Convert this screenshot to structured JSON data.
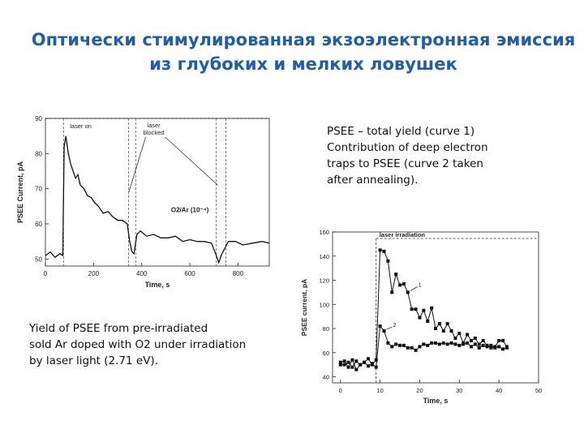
{
  "title": {
    "line1": "Оптически стимулированная экзоэлектронная эмиссия",
    "line2": "из глубоких и мелких ловушек"
  },
  "notes": {
    "right": "PSEE – total yield (curve 1)\nContribution of deep electron\ntraps to PSEE (curve 2 taken\nafter annealing).",
    "left": "Yield of PSEE from pre-irradiated\nsold Ar doped with O2 under irradiation\n by laser light (2.71 eV)."
  },
  "chart_data": [
    {
      "type": "line",
      "xlabel": "Time, s",
      "ylabel": "PSEE Current, pA",
      "xlim": [
        0,
        930
      ],
      "ylim": [
        48,
        90
      ],
      "xticks": [
        0,
        200,
        400,
        600,
        800
      ],
      "yticks": [
        50,
        60,
        70,
        80,
        90
      ],
      "annotations": {
        "laser_on": "laser on",
        "laser_blocked": "laser\nblocked",
        "gas": "O2/Ar (10⁻⁴)"
      },
      "laser_on_at": 75,
      "laser_blocked_intervals": [
        [
          345,
          375
        ],
        [
          710,
          750
        ]
      ],
      "series": [
        {
          "x": [
            0,
            20,
            40,
            60,
            72,
            78,
            85,
            95,
            105,
            115,
            125,
            135,
            145,
            160,
            175,
            190,
            205,
            220,
            240,
            260,
            280,
            300,
            320,
            340,
            350,
            360,
            368,
            380,
            395,
            420,
            450,
            480,
            510,
            540,
            570,
            600,
            630,
            660,
            690,
            710,
            720,
            730,
            745,
            760,
            790,
            820,
            860,
            900,
            930
          ],
          "y": [
            51,
            52,
            50.5,
            51.5,
            51,
            82,
            85,
            80,
            77,
            75,
            73,
            74,
            71,
            70,
            68,
            67.5,
            66,
            65,
            63,
            63.5,
            62,
            61,
            61,
            60,
            55,
            52,
            51.5,
            57,
            58,
            56.5,
            57,
            56,
            56,
            56.5,
            55,
            55.5,
            55,
            55,
            54.5,
            51,
            49,
            51,
            53,
            55,
            55,
            54,
            54.5,
            55,
            54.5
          ]
        }
      ]
    },
    {
      "type": "scatter",
      "xlabel": "Time, s",
      "ylabel": "PSEE current, pA",
      "xlim": [
        -2,
        50
      ],
      "ylim": [
        35,
        160
      ],
      "xticks": [
        0,
        10,
        20,
        30,
        40,
        50
      ],
      "yticks": [
        40,
        60,
        80,
        100,
        120,
        140,
        160
      ],
      "annotations": {
        "header": "laser irradiation"
      },
      "laser_on_at": 9,
      "series": [
        {
          "name": "1",
          "x": [
            0,
            1,
            2,
            3,
            4,
            5,
            6,
            7,
            8,
            9,
            10,
            11,
            12,
            13,
            14,
            15,
            16,
            17,
            18,
            19,
            20,
            21,
            22,
            23,
            24,
            25,
            26,
            27,
            28,
            29,
            30,
            31,
            32,
            33,
            34,
            35,
            36,
            37,
            38,
            39,
            40,
            41,
            42
          ],
          "y": [
            52,
            53,
            48,
            54,
            46,
            50,
            52,
            55,
            50,
            54,
            145,
            144,
            136,
            110,
            125,
            116,
            117,
            110,
            96,
            96,
            89,
            95,
            86,
            97,
            80,
            84,
            78,
            84,
            78,
            72,
            76,
            68,
            75,
            70,
            72,
            67,
            70,
            66,
            64,
            65,
            70,
            70,
            65
          ]
        },
        {
          "name": "2",
          "x": [
            0,
            1,
            2,
            3,
            4,
            5,
            6,
            7,
            8,
            9,
            10,
            11,
            12,
            13,
            14,
            15,
            16,
            17,
            18,
            19,
            20,
            21,
            22,
            23,
            24,
            25,
            26,
            27,
            28,
            29,
            30,
            31,
            32,
            33,
            34,
            35,
            36,
            37,
            38,
            39,
            40,
            41,
            42
          ],
          "y": [
            50,
            50,
            52,
            48,
            53,
            50,
            52,
            49,
            51,
            48,
            82,
            78,
            68,
            65,
            67,
            66,
            66,
            64,
            64,
            62,
            65,
            67,
            66,
            68,
            68,
            67,
            68,
            67,
            68,
            67,
            66,
            67,
            68,
            65,
            67,
            64,
            66,
            65,
            66,
            64,
            65,
            63,
            64
          ]
        }
      ]
    }
  ]
}
